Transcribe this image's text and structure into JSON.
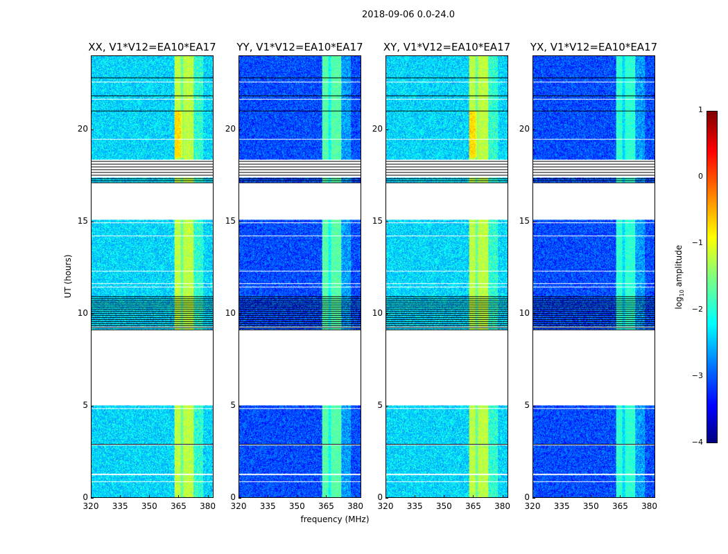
{
  "chart_data": {
    "type": "heatmap",
    "title": "2018-09-06 0.0-24.0",
    "xlabel": "frequency (MHz)",
    "ylabel": "UT (hours)",
    "xlim": [
      320,
      383
    ],
    "ylim": [
      0,
      24
    ],
    "xticks": [
      "320",
      "335",
      "350",
      "365",
      "380"
    ],
    "yticks": [
      "0",
      "5",
      "10",
      "15",
      "20"
    ],
    "panels": [
      {
        "title": "XX, V1*V12=EA10*EA17",
        "base_log_amp": -2.3,
        "band_log_amp": -1.2
      },
      {
        "title": "YY, V1*V12=EA10*EA17",
        "base_log_amp": -3.0,
        "band_log_amp": -1.7
      },
      {
        "title": "XY, V1*V12=EA10*EA17",
        "base_log_amp": -2.3,
        "band_log_amp": -1.2
      },
      {
        "title": "YX, V1*V12=EA10*EA17",
        "base_log_amp": -3.0,
        "band_log_amp": -1.9
      }
    ],
    "bright_band_mhz": [
      363,
      373
    ],
    "flagged_hours": [
      [
        5.0,
        9.1
      ],
      [
        17.4,
        18.4
      ],
      [
        15.1,
        17.1
      ]
    ],
    "colorbar": {
      "label": "log10 amplitude",
      "range": [
        -4,
        1
      ],
      "ticks": [
        "1",
        "0",
        "−1",
        "−2",
        "−3",
        "−4"
      ],
      "colormap": "jet"
    }
  }
}
